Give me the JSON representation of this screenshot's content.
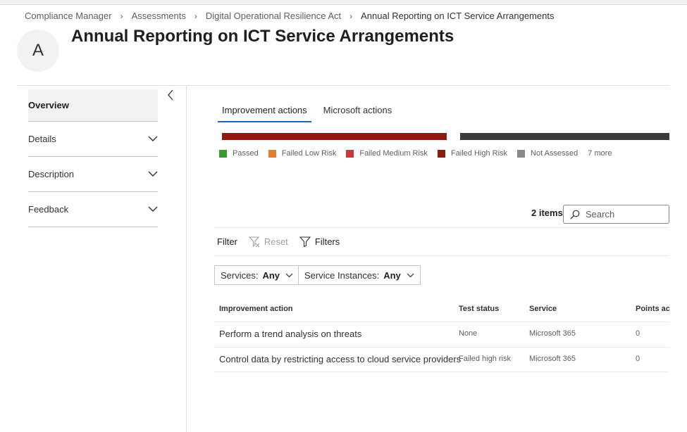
{
  "breadcrumb": [
    "Compliance Manager",
    "Assessments",
    "Digital Operational Resilience Act",
    "Annual Reporting on ICT Service Arrangements"
  ],
  "avatar_letter": "A",
  "page_title": "Annual Reporting on ICT Service Arrangements",
  "sidebar": {
    "overview": "Overview",
    "items": [
      {
        "label": "Details",
        "icon": "chevron-down-icon"
      },
      {
        "label": "Description",
        "icon": "chevron-down-icon"
      },
      {
        "label": "Feedback",
        "icon": "chevron-down-icon"
      }
    ]
  },
  "tabs": [
    {
      "label": "Improvement actions",
      "active": true
    },
    {
      "label": "Microsoft actions",
      "active": false
    }
  ],
  "status_bars": [
    {
      "name": "Failed High Risk",
      "color": "#8e1a10"
    },
    {
      "name": "Not Assessed",
      "color": "#3b3a39"
    }
  ],
  "legend": [
    {
      "label": "Passed",
      "color": "#3c9a2f"
    },
    {
      "label": "Failed Low Risk",
      "color": "#ea7c2e"
    },
    {
      "label": "Failed Medium Risk",
      "color": "#d13438"
    },
    {
      "label": "Failed High Risk",
      "color": "#8e1a10"
    },
    {
      "label": "Not Assessed",
      "color": "#8a8886"
    }
  ],
  "legend_more": "7 more",
  "items_count": "2 items",
  "search": {
    "placeholder": "Search",
    "value": ""
  },
  "filter": {
    "label": "Filter",
    "reset": "Reset",
    "filters": "Filters"
  },
  "dropdowns": [
    {
      "label": "Services:",
      "value": "Any"
    },
    {
      "label": "Service Instances:",
      "value": "Any"
    }
  ],
  "table": {
    "columns": [
      "Improvement action",
      "Test status",
      "Service",
      "Points achi"
    ],
    "rows": [
      {
        "action": "Perform a trend analysis on threats",
        "status": "None",
        "service": "Microsoft 365",
        "points": "0"
      },
      {
        "action": "Control data by restricting access to cloud service providers",
        "status": "Failed high risk",
        "service": "Microsoft 365",
        "points": "0"
      }
    ]
  },
  "colors": {
    "accent": "#0f6cbd"
  }
}
